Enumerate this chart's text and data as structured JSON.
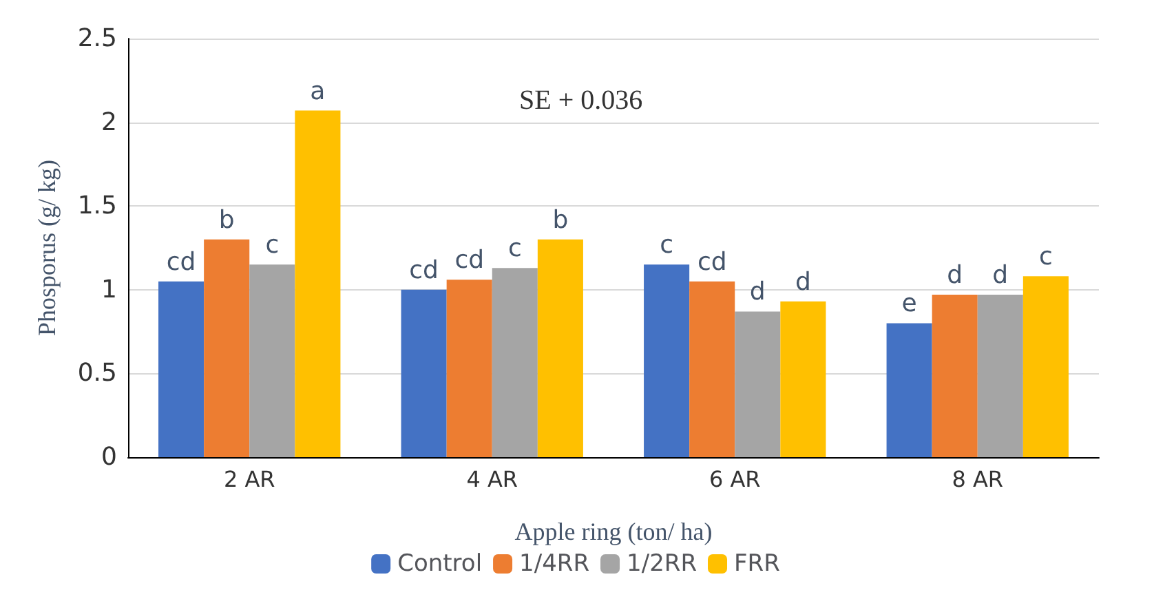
{
  "chart_data": {
    "type": "bar",
    "xlabel": "Apple ring (ton/ ha)",
    "ylabel": "Phosporus (g/ kg)",
    "categories": [
      "2 AR",
      "4 AR",
      "6 AR",
      "8 AR"
    ],
    "series": [
      {
        "name": "Control",
        "color": "#4472c4",
        "values": [
          1.05,
          1.0,
          1.15,
          0.8
        ],
        "value_labels": [
          "cd",
          "cd",
          "c",
          "e"
        ]
      },
      {
        "name": "1/4RR",
        "color": "#ed7d31",
        "values": [
          1.3,
          1.06,
          1.05,
          0.97
        ],
        "value_labels": [
          "b",
          "cd",
          "cd",
          "d"
        ]
      },
      {
        "name": "1/2RR",
        "color": "#a5a5a5",
        "values": [
          1.15,
          1.13,
          0.87,
          0.97
        ],
        "value_labels": [
          "c",
          "c",
          "d",
          "d"
        ]
      },
      {
        "name": "FRR",
        "color": "#ffc000",
        "values": [
          2.07,
          1.3,
          0.93,
          1.08
        ],
        "value_labels": [
          "a",
          "b",
          "d",
          "c"
        ]
      }
    ],
    "ylim": [
      0,
      2.5
    ],
    "yticks": [
      0,
      0.5,
      1,
      1.5,
      2,
      2.5
    ],
    "grid": "y",
    "legend": "bottom",
    "annotations": [
      "SE + 0.036"
    ]
  }
}
